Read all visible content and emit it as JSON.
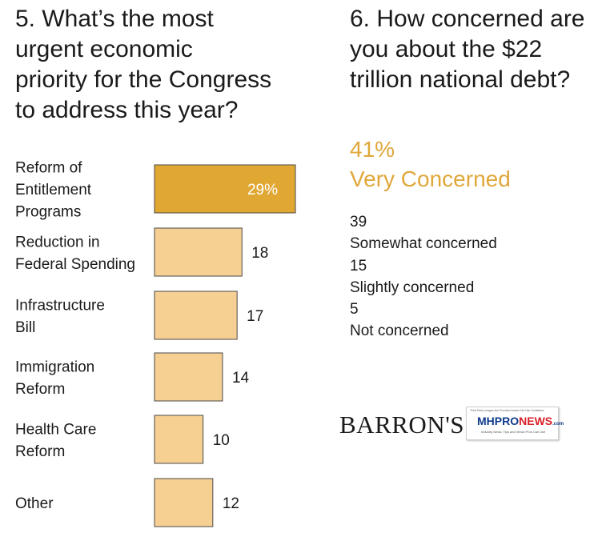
{
  "q5": {
    "title": "5. What’s the most\nurgent economic\npriority for the Congress\nto address this year?"
  },
  "q6": {
    "title": "6. How concerned are\nyou about the $22\ntrillion national debt?",
    "headline_value": "41%",
    "headline_label": "Very Concerned",
    "responses": [
      {
        "value": "39",
        "label": "Somewhat concerned"
      },
      {
        "value": "15",
        "label": "Slightly concerned"
      },
      {
        "value": "5",
        "label": "Not concerned"
      }
    ]
  },
  "chart_data": [
    {
      "type": "bar",
      "orientation": "horizontal",
      "title": "5. What’s the most urgent economic priority for the Congress to address this year?",
      "categories": [
        [
          "Reform of",
          "Entitlement",
          "Programs"
        ],
        [
          "Reduction in",
          "Federal Spending"
        ],
        [
          "Infrastructure",
          "Bill"
        ],
        [
          "Immigration",
          "Reform"
        ],
        [
          "Health Care",
          "Reform"
        ],
        [
          "Other"
        ]
      ],
      "values": [
        29,
        18,
        17,
        14,
        10,
        12
      ],
      "value_labels": [
        "29%",
        "18",
        "17",
        "14",
        "10",
        "12"
      ],
      "highlight_index": 0,
      "colors": {
        "highlight": "#e0a733",
        "bar": "#f6cf93",
        "stroke": "#4a4a4a",
        "highlight_text": "#ffffff"
      }
    },
    {
      "type": "table",
      "title": "6. How concerned are you about the $22 trillion national debt?",
      "rows": [
        {
          "label": "Very Concerned",
          "value": 41
        },
        {
          "label": "Somewhat concerned",
          "value": 39
        },
        {
          "label": "Slightly concerned",
          "value": 15
        },
        {
          "label": "Not concerned",
          "value": 5
        }
      ]
    }
  ],
  "logos": {
    "barrons": "BARRON'S",
    "mhpro_top": "Third Party Images Are Provided Under Fair Use Guidelines",
    "mhpro_mh": "MH",
    "mhpro_pro": "PRO",
    "mhpro_news": "NEWS",
    "mhpro_com": ".com",
    "mhpro_tag": "Industry News, Tips and Views Pros Can Use"
  },
  "colors": {
    "accent": "#e0a73a"
  }
}
